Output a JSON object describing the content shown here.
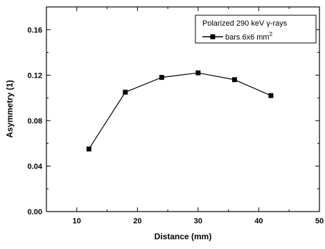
{
  "chart_data": {
    "type": "line",
    "xlabel": "Distance (mm)",
    "ylabel": "Asymmetry (1)",
    "xlim": [
      5,
      50
    ],
    "ylim": [
      0.0,
      0.18
    ],
    "xticks": [
      10,
      20,
      30,
      40,
      50
    ],
    "yticks": [
      0.0,
      0.04,
      0.08,
      0.12,
      0.16
    ],
    "xtick_labels": [
      "10",
      "20",
      "30",
      "40",
      "50"
    ],
    "ytick_labels": [
      "0.00",
      "0.04",
      "0.08",
      "0.12",
      "0.16"
    ],
    "grid": false,
    "legend": {
      "placement": "top-right",
      "title": "Polarized 290 keV γ-rays",
      "entry_prefix": "bars 6x6 mm",
      "entry_superscript": "2"
    },
    "series": [
      {
        "name": "bars 6x6 mm²",
        "marker": "square",
        "color": "#000000",
        "x": [
          12,
          18,
          24,
          30,
          36,
          42
        ],
        "y": [
          0.055,
          0.105,
          0.118,
          0.122,
          0.116,
          0.102
        ]
      }
    ]
  }
}
